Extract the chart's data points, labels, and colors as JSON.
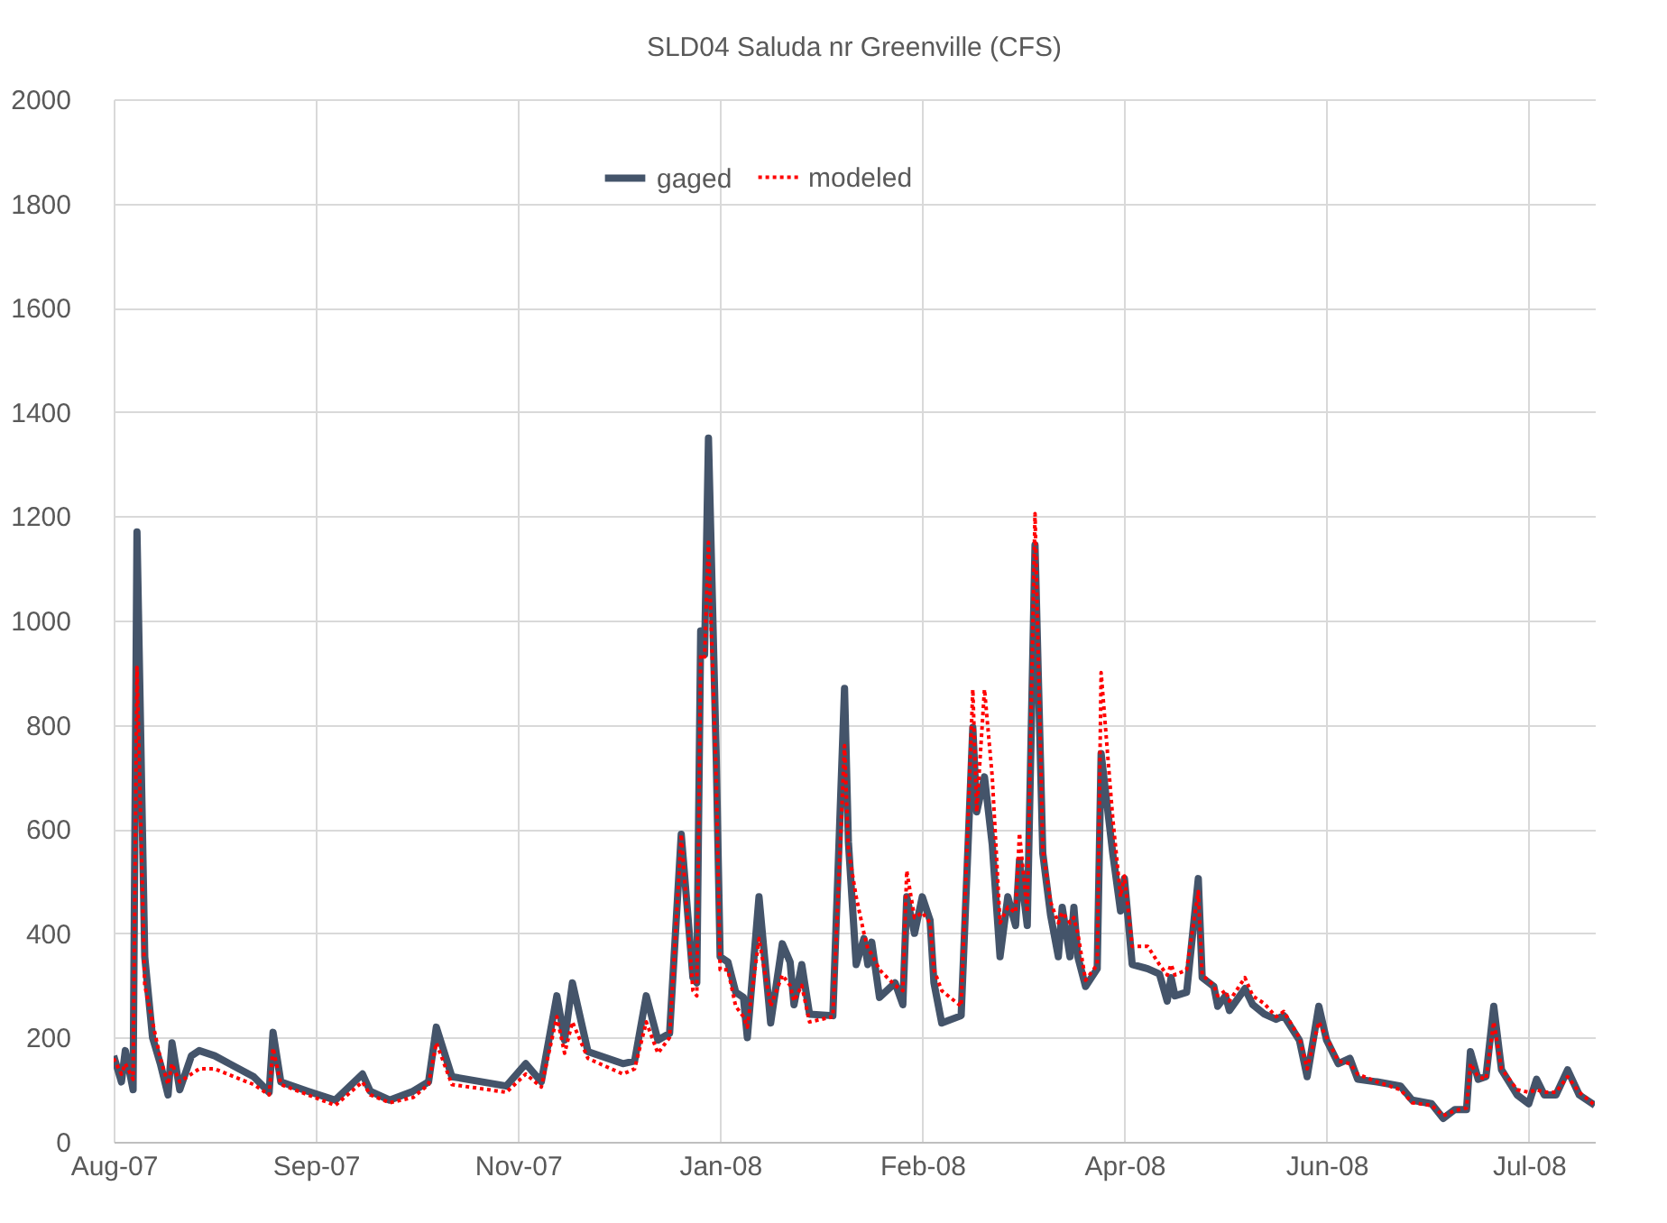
{
  "chart_data": {
    "type": "line",
    "title": "SLD04  Saluda nr Greenville (CFS)",
    "x": [
      "2007-08-01",
      "2007-08-03",
      "2007-08-04",
      "2007-08-06",
      "2007-08-07",
      "2007-08-09",
      "2007-08-11",
      "2007-08-13",
      "2007-08-15",
      "2007-08-16",
      "2007-08-18",
      "2007-08-21",
      "2007-08-23",
      "2007-08-27",
      "2007-09-06",
      "2007-09-10",
      "2007-09-11",
      "2007-09-13",
      "2007-09-20",
      "2007-09-27",
      "2007-10-04",
      "2007-10-06",
      "2007-10-11",
      "2007-10-17",
      "2007-10-21",
      "2007-10-23",
      "2007-10-27",
      "2007-11-10",
      "2007-11-15",
      "2007-11-19",
      "2007-11-23",
      "2007-11-25",
      "2007-11-27",
      "2007-12-01",
      "2007-12-10",
      "2007-12-13",
      "2007-12-16",
      "2007-12-19",
      "2007-12-22",
      "2007-12-25",
      "2007-12-28",
      "2007-12-29",
      "2007-12-30",
      "2007-12-31",
      "2008-01-01",
      "2008-01-03",
      "2008-01-04",
      "2008-01-06",
      "2008-01-08",
      "2008-01-10",
      "2008-01-11",
      "2008-01-14",
      "2008-01-17",
      "2008-01-20",
      "2008-01-22",
      "2008-01-23",
      "2008-01-25",
      "2008-01-27",
      "2008-02-02",
      "2008-02-05",
      "2008-02-06",
      "2008-02-08",
      "2008-02-10",
      "2008-02-11",
      "2008-02-12",
      "2008-02-14",
      "2008-02-18",
      "2008-02-20",
      "2008-02-21",
      "2008-02-23",
      "2008-02-25",
      "2008-02-27",
      "2008-02-28",
      "2008-03-01",
      "2008-03-06",
      "2008-03-09",
      "2008-03-10",
      "2008-03-12",
      "2008-03-14",
      "2008-03-16",
      "2008-03-18",
      "2008-03-20",
      "2008-03-21",
      "2008-03-23",
      "2008-03-25",
      "2008-03-27",
      "2008-03-29",
      "2008-03-31",
      "2008-04-01",
      "2008-04-03",
      "2008-04-04",
      "2008-04-05",
      "2008-04-07",
      "2008-04-10",
      "2008-04-11",
      "2008-04-14",
      "2008-04-16",
      "2008-04-17",
      "2008-04-19",
      "2008-04-23",
      "2008-04-26",
      "2008-04-28",
      "2008-04-29",
      "2008-04-30",
      "2008-05-03",
      "2008-05-06",
      "2008-05-07",
      "2008-05-10",
      "2008-05-11",
      "2008-05-13",
      "2008-05-14",
      "2008-05-18",
      "2008-05-20",
      "2008-05-23",
      "2008-05-26",
      "2008-05-28",
      "2008-06-01",
      "2008-06-03",
      "2008-06-06",
      "2008-06-08",
      "2008-06-11",
      "2008-06-14",
      "2008-06-16",
      "2008-06-21",
      "2008-06-27",
      "2008-06-30",
      "2008-07-05",
      "2008-07-08",
      "2008-07-11",
      "2008-07-14",
      "2008-07-15",
      "2008-07-17",
      "2008-07-19",
      "2008-07-21",
      "2008-07-23",
      "2008-07-27",
      "2008-07-30",
      "2008-08-01",
      "2008-08-03",
      "2008-08-06",
      "2008-08-09",
      "2008-08-12",
      "2008-08-16"
    ],
    "series": [
      {
        "name": "gaged",
        "color": "#44546a",
        "line_style": "solid",
        "values": [
          165,
          115,
          175,
          100,
          1170,
          355,
          200,
          150,
          90,
          190,
          100,
          165,
          175,
          165,
          125,
          95,
          210,
          115,
          97,
          80,
          130,
          97,
          80,
          97,
          115,
          220,
          125,
          107,
          150,
          115,
          280,
          195,
          305,
          173,
          150,
          155,
          280,
          195,
          208,
          590,
          315,
          305,
          980,
          935,
          1350,
          737,
          355,
          345,
          287,
          277,
          200,
          470,
          228,
          380,
          345,
          263,
          340,
          245,
          242,
          870,
          575,
          340,
          390,
          340,
          383,
          277,
          305,
          263,
          470,
          400,
          470,
          425,
          305,
          228,
          242,
          795,
          633,
          700,
          570,
          355,
          470,
          415,
          540,
          415,
          1145,
          553,
          435,
          355,
          450,
          355,
          450,
          355,
          298,
          332,
          745,
          553,
          443,
          505,
          340,
          332,
          322,
          270,
          315,
          280,
          287,
          505,
          315,
          298,
          260,
          280,
          252,
          294,
          263,
          245,
          235,
          242,
          195,
          125,
          260,
          195,
          150,
          160,
          120,
          115,
          107,
          80,
          73,
          45,
          62,
          62,
          173,
          120,
          125,
          260,
          138,
          90,
          73,
          120,
          90,
          90,
          138,
          90,
          70
        ]
      },
      {
        "name": "modeled",
        "color": "#ff0000",
        "line_style": "dotted",
        "values": [
          160,
          130,
          150,
          120,
          910,
          300,
          230,
          160,
          110,
          150,
          115,
          130,
          140,
          140,
          110,
          90,
          180,
          110,
          90,
          70,
          115,
          90,
          75,
          85,
          110,
          190,
          110,
          95,
          130,
          105,
          240,
          170,
          230,
          160,
          130,
          140,
          230,
          170,
          200,
          590,
          290,
          280,
          935,
          930,
          1150,
          700,
          330,
          330,
          260,
          240,
          220,
          390,
          260,
          320,
          300,
          270,
          300,
          230,
          240,
          760,
          560,
          470,
          400,
          370,
          360,
          330,
          300,
          290,
          520,
          430,
          440,
          420,
          330,
          290,
          260,
          868,
          633,
          868,
          700,
          420,
          450,
          440,
          592,
          440,
          1205,
          560,
          460,
          420,
          440,
          420,
          430,
          400,
          310,
          340,
          900,
          620,
          470,
          510,
          375,
          375,
          340,
          320,
          340,
          320,
          330,
          480,
          320,
          300,
          280,
          290,
          270,
          315,
          280,
          265,
          240,
          250,
          200,
          140,
          230,
          200,
          155,
          150,
          130,
          115,
          100,
          75,
          70,
          50,
          60,
          65,
          150,
          125,
          120,
          230,
          140,
          100,
          95,
          100,
          95,
          95,
          125,
          95,
          70
        ]
      }
    ],
    "xlim": [
      "2007-08-01",
      "2008-08-16"
    ],
    "xticks": [
      {
        "value": "2007-08-01",
        "label": "Aug-07"
      },
      {
        "value": "2007-09-22",
        "label": "Sep-07"
      },
      {
        "value": "2007-11-13",
        "label": "Nov-07"
      },
      {
        "value": "2008-01-04",
        "label": "Jan-08"
      },
      {
        "value": "2008-02-25",
        "label": "Feb-08"
      },
      {
        "value": "2008-04-17",
        "label": "Apr-08"
      },
      {
        "value": "2008-06-08",
        "label": "Jun-08"
      },
      {
        "value": "2008-07-30",
        "label": "Jul-08"
      }
    ],
    "ylim": [
      0,
      2000
    ],
    "yticks": [
      0,
      200,
      400,
      600,
      800,
      1000,
      1200,
      1400,
      1600,
      1800,
      2000
    ],
    "grid": true,
    "legend": "top",
    "marker": "none"
  }
}
